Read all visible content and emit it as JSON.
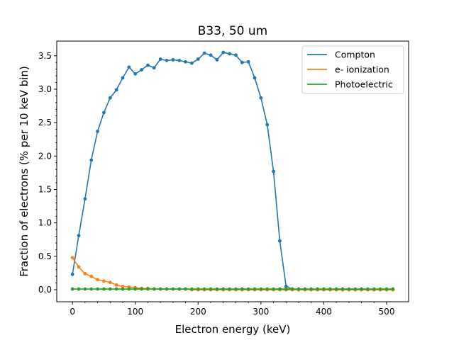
{
  "chart_data": {
    "type": "line",
    "title": "B33, 50 um",
    "xlabel": "Electron energy (keV)",
    "ylabel": "Fraction of electrons (% per 10 keV bin)",
    "xlim": [
      -25,
      535
    ],
    "ylim": [
      -0.18,
      3.72
    ],
    "xticks": [
      0,
      100,
      200,
      300,
      400,
      500
    ],
    "yticks": [
      0.0,
      0.5,
      1.0,
      1.5,
      2.0,
      2.5,
      3.0,
      3.5
    ],
    "xtick_labels": [
      "0",
      "100",
      "200",
      "300",
      "400",
      "500"
    ],
    "ytick_labels": [
      "0.0",
      "0.5",
      "1.0",
      "1.5",
      "2.0",
      "2.5",
      "3.0",
      "3.5"
    ],
    "grid": false,
    "legend_position": "top-right",
    "x": [
      0,
      10,
      20,
      30,
      40,
      50,
      60,
      70,
      80,
      90,
      100,
      110,
      120,
      130,
      140,
      150,
      160,
      170,
      180,
      190,
      200,
      210,
      220,
      230,
      240,
      250,
      260,
      270,
      280,
      290,
      300,
      310,
      320,
      330,
      340,
      350,
      360,
      370,
      380,
      390,
      400,
      410,
      420,
      430,
      440,
      450,
      460,
      470,
      480,
      490,
      500,
      510
    ],
    "series": [
      {
        "name": "Compton",
        "color": "#1f77b4",
        "values": [
          0.23,
          0.81,
          1.36,
          1.94,
          2.37,
          2.65,
          2.87,
          2.99,
          3.17,
          3.33,
          3.23,
          3.29,
          3.36,
          3.32,
          3.45,
          3.43,
          3.44,
          3.43,
          3.41,
          3.39,
          3.45,
          3.54,
          3.51,
          3.44,
          3.55,
          3.53,
          3.51,
          3.4,
          3.41,
          3.17,
          2.87,
          2.47,
          1.77,
          0.73,
          0.05,
          0.01,
          0.0,
          0.0,
          0.0,
          0.0,
          0.0,
          0.0,
          0.0,
          0.0,
          0.0,
          0.0,
          0.0,
          0.0,
          0.0,
          0.0,
          0.0,
          0.0
        ]
      },
      {
        "name": "e- ionization",
        "color": "#ff7f0e",
        "values": [
          0.48,
          0.34,
          0.24,
          0.2,
          0.15,
          0.13,
          0.11,
          0.07,
          0.05,
          0.04,
          0.03,
          0.02,
          0.02,
          0.01,
          0.01,
          0.01,
          0.01,
          0.01,
          0.01,
          0.0,
          0.0,
          0.0,
          0.0,
          0.0,
          0.0,
          0.0,
          0.0,
          0.0,
          0.0,
          0.0,
          0.0,
          0.0,
          0.0,
          0.0,
          0.0,
          0.0,
          0.0,
          0.0,
          0.0,
          0.0,
          0.0,
          0.0,
          0.0,
          0.0,
          0.0,
          0.0,
          0.0,
          0.0,
          0.0,
          0.0,
          0.0,
          0.0
        ]
      },
      {
        "name": "Photoelectric",
        "color": "#2ca02c",
        "values": [
          0.01,
          0.01,
          0.01,
          0.01,
          0.01,
          0.01,
          0.01,
          0.01,
          0.01,
          0.01,
          0.01,
          0.01,
          0.01,
          0.01,
          0.01,
          0.01,
          0.01,
          0.01,
          0.01,
          0.01,
          0.01,
          0.01,
          0.01,
          0.01,
          0.01,
          0.01,
          0.01,
          0.01,
          0.01,
          0.01,
          0.01,
          0.01,
          0.01,
          0.01,
          0.01,
          0.01,
          0.01,
          0.01,
          0.01,
          0.01,
          0.01,
          0.01,
          0.01,
          0.01,
          0.01,
          0.01,
          0.01,
          0.01,
          0.01,
          0.01,
          0.01,
          0.01
        ]
      }
    ]
  }
}
